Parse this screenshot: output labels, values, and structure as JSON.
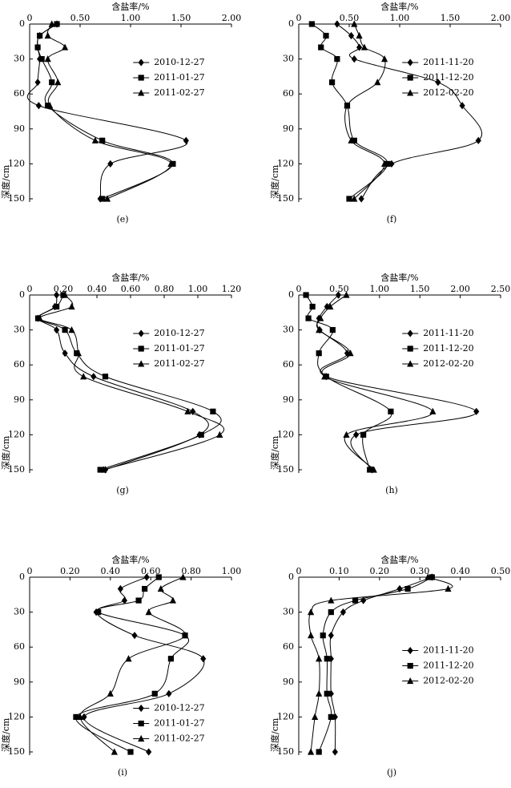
{
  "chart_data": [
    {
      "type": "line",
      "panel": "(e)",
      "xlabel": "含盐率/%",
      "ylabel": "深度/cm",
      "legend": "upper right",
      "xlim": [
        0,
        2
      ],
      "xticks": [
        0,
        {
          "value": 0.5,
          "label": "0.50"
        },
        {
          "value": 1,
          "label": "1.00"
        },
        {
          "value": 1.5,
          "label": "1.50"
        },
        {
          "value": 2,
          "label": "2.00"
        }
      ],
      "ylim": [
        0,
        150
      ],
      "yticks": [
        0,
        30,
        60,
        90,
        120,
        150
      ],
      "y": [
        0,
        10,
        20,
        30,
        50,
        70,
        100,
        120,
        150
      ],
      "series": [
        {
          "name": "2010-12-27",
          "marker": "diamond",
          "color": "#000000",
          "values": [
            0.27,
            0.1,
            0.08,
            0.1,
            0.08,
            0.09,
            1.55,
            0.8,
            0.7
          ]
        },
        {
          "name": "2011-01-27",
          "marker": "square",
          "color": "#000000",
          "values": [
            0.27,
            0.1,
            0.08,
            0.12,
            0.22,
            0.18,
            0.72,
            1.42,
            0.72
          ]
        },
        {
          "name": "2011-02-27",
          "marker": "triangle",
          "color": "#000000",
          "values": [
            0.22,
            0.18,
            0.35,
            0.18,
            0.28,
            0.2,
            0.65,
            1.4,
            0.77
          ]
        }
      ]
    },
    {
      "type": "line",
      "panel": "(f)",
      "xlabel": "含盐率/%",
      "ylabel": "深度/cm",
      "legend": "upper right",
      "xlim": [
        0,
        2
      ],
      "xticks": [
        0,
        {
          "value": 0.5,
          "label": "0.50"
        },
        {
          "value": 1,
          "label": "1.00"
        },
        {
          "value": 1.5,
          "label": "1.50"
        },
        {
          "value": 2,
          "label": "2.00"
        }
      ],
      "ylim": [
        0,
        150
      ],
      "yticks": [
        0,
        30,
        60,
        90,
        120,
        150
      ],
      "y": [
        0,
        10,
        20,
        30,
        50,
        70,
        100,
        120,
        150
      ],
      "series": [
        {
          "name": "2011-11-20",
          "marker": "diamond",
          "color": "#000000",
          "values": [
            0.38,
            0.52,
            0.6,
            0.55,
            1.38,
            1.62,
            1.78,
            0.92,
            0.62
          ]
        },
        {
          "name": "2011-12-20",
          "marker": "square",
          "color": "#000000",
          "values": [
            0.13,
            0.27,
            0.22,
            0.38,
            0.33,
            0.48,
            0.55,
            0.88,
            0.5
          ]
        },
        {
          "name": "2012-02-20",
          "marker": "triangle",
          "color": "#000000",
          "values": [
            0.55,
            0.6,
            0.65,
            0.85,
            0.78,
            0.48,
            0.52,
            0.85,
            0.55
          ]
        }
      ]
    },
    {
      "type": "line",
      "panel": "(g)",
      "xlabel": "含盐率/%",
      "ylabel": "深度/cm",
      "legend": "upper right",
      "xlim": [
        0,
        1.2
      ],
      "xticks": [
        0,
        {
          "value": 0.2,
          "label": "0.20"
        },
        {
          "value": 0.4,
          "label": "0.40"
        },
        {
          "value": 0.6,
          "label": "0.60"
        },
        {
          "value": 0.8,
          "label": "0.80"
        },
        {
          "value": 1,
          "label": "1.00"
        },
        {
          "value": 1.2,
          "label": "1.20"
        }
      ],
      "ylim": [
        0,
        150
      ],
      "yticks": [
        0,
        30,
        60,
        90,
        120,
        150
      ],
      "y": [
        0,
        10,
        20,
        30,
        50,
        70,
        100,
        120,
        150
      ],
      "series": [
        {
          "name": "2010-12-27",
          "marker": "diamond",
          "color": "#000000",
          "values": [
            0.16,
            0.15,
            0.05,
            0.16,
            0.21,
            0.38,
            0.97,
            1.01,
            0.45
          ]
        },
        {
          "name": "2011-01-27",
          "marker": "square",
          "color": "#000000",
          "values": [
            0.2,
            0.16,
            0.05,
            0.21,
            0.28,
            0.45,
            1.09,
            1.02,
            0.42
          ]
        },
        {
          "name": "2011-02-27",
          "marker": "triangle",
          "color": "#000000",
          "values": [
            0.21,
            0.25,
            0.06,
            0.25,
            0.29,
            0.32,
            0.94,
            1.13,
            0.44
          ]
        }
      ]
    },
    {
      "type": "line",
      "panel": "(h)",
      "xlabel": "含盐率/%",
      "ylabel": "深度/cm",
      "legend": "upper right",
      "xlim": [
        0,
        2.5
      ],
      "xticks": [
        0,
        {
          "value": 0.5,
          "label": "0.50"
        },
        {
          "value": 1,
          "label": "1.00"
        },
        {
          "value": 1.5,
          "label": "1.50"
        },
        {
          "value": 2,
          "label": "2.00"
        },
        {
          "value": 2.5,
          "label": "2.50"
        }
      ],
      "ylim": [
        0,
        150
      ],
      "yticks": [
        0,
        30,
        60,
        90,
        120,
        150
      ],
      "y": [
        0,
        10,
        20,
        30,
        50,
        70,
        100,
        120,
        150
      ],
      "series": [
        {
          "name": "2011-11-20",
          "marker": "diamond",
          "color": "#000000",
          "values": [
            0.49,
            0.35,
            0.25,
            0.26,
            0.6,
            0.34,
            2.2,
            0.71,
            0.91
          ]
        },
        {
          "name": "2011-12-20",
          "marker": "square",
          "color": "#000000",
          "values": [
            0.09,
            0.17,
            0.12,
            0.42,
            0.25,
            0.34,
            1.14,
            0.8,
            0.88
          ]
        },
        {
          "name": "2012-02-20",
          "marker": "triangle",
          "color": "#000000",
          "values": [
            0.59,
            0.39,
            0.27,
            0.25,
            0.64,
            0.32,
            1.66,
            0.59,
            0.93
          ]
        }
      ]
    },
    {
      "type": "line",
      "panel": "(i)",
      "xlabel": "含盐率/%",
      "ylabel": "深度/cm",
      "legend": "lower right",
      "xlim": [
        0,
        1
      ],
      "xticks": [
        0,
        {
          "value": 0.2,
          "label": "0.20"
        },
        {
          "value": 0.4,
          "label": "0.40"
        },
        {
          "value": 0.6,
          "label": "0.60"
        },
        {
          "value": 0.8,
          "label": "0.80"
        },
        {
          "value": 1,
          "label": "1.00"
        }
      ],
      "ylim": [
        0,
        150
      ],
      "yticks": [
        0,
        30,
        60,
        90,
        120,
        150
      ],
      "y": [
        0,
        10,
        20,
        30,
        50,
        70,
        100,
        120,
        150
      ],
      "series": [
        {
          "name": "2010-12-27",
          "marker": "diamond",
          "color": "#000000",
          "values": [
            0.58,
            0.45,
            0.47,
            0.33,
            0.52,
            0.86,
            0.69,
            0.27,
            0.59
          ]
        },
        {
          "name": "2011-01-27",
          "marker": "square",
          "color": "#000000",
          "values": [
            0.64,
            0.57,
            0.54,
            0.34,
            0.77,
            0.7,
            0.62,
            0.23,
            0.5
          ]
        },
        {
          "name": "2011-02-27",
          "marker": "triangle",
          "color": "#000000",
          "values": [
            0.76,
            0.65,
            0.71,
            0.59,
            0.77,
            0.49,
            0.4,
            0.25,
            0.42
          ]
        }
      ]
    },
    {
      "type": "line",
      "panel": "(j)",
      "xlabel": "含盐率/%",
      "ylabel": "深度/cm",
      "legend": "center right",
      "xlim": [
        0,
        0.5
      ],
      "xticks": [
        0,
        {
          "value": 0.1,
          "label": "0.10"
        },
        {
          "value": 0.2,
          "label": "0.20"
        },
        {
          "value": 0.3,
          "label": "0.30"
        },
        {
          "value": 0.4,
          "label": "0.40"
        },
        {
          "value": 0.5,
          "label": "0.50"
        }
      ],
      "ylim": [
        0,
        150
      ],
      "yticks": [
        0,
        30,
        60,
        90,
        120,
        150
      ],
      "y": [
        0,
        10,
        20,
        30,
        50,
        70,
        100,
        120,
        150
      ],
      "series": [
        {
          "name": "2011-11-20",
          "marker": "diamond",
          "color": "#000000",
          "values": [
            0.33,
            0.25,
            0.16,
            0.11,
            0.08,
            0.08,
            0.08,
            0.09,
            0.09
          ]
        },
        {
          "name": "2011-12-20",
          "marker": "square",
          "color": "#000000",
          "values": [
            0.33,
            0.27,
            0.14,
            0.08,
            0.06,
            0.07,
            0.07,
            0.08,
            0.05
          ]
        },
        {
          "name": "2012-02-20",
          "marker": "triangle",
          "color": "#000000",
          "values": [
            0.32,
            0.37,
            0.08,
            0.03,
            0.03,
            0.05,
            0.05,
            0.04,
            0.03
          ]
        }
      ]
    }
  ]
}
